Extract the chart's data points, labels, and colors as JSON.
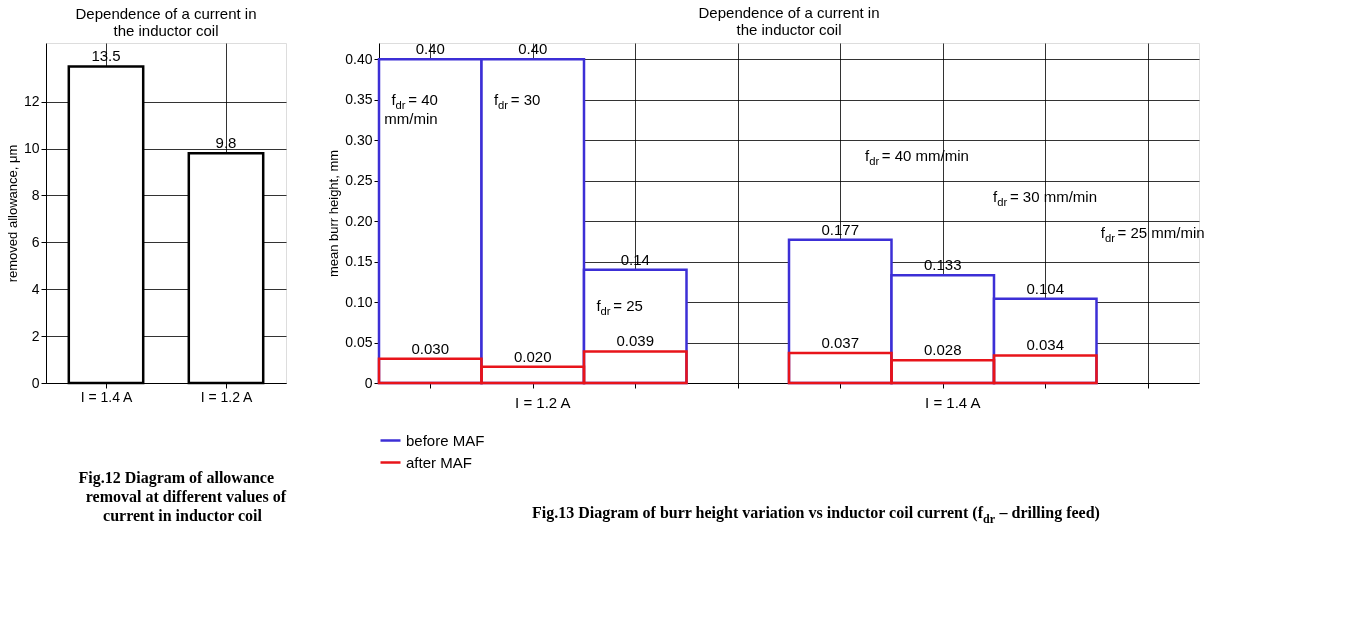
{
  "chart_data": [
    {
      "type": "bar",
      "title": "Dependence of a current in the inductor coil",
      "ylabel": "removed allowance, μm",
      "categories": [
        "I = 1.4 A",
        "I = 1.2 A"
      ],
      "values": [
        13.5,
        9.8
      ],
      "color": "#000000",
      "ylim": [
        0,
        14.5
      ],
      "yticks": [
        0,
        2,
        4,
        6,
        8,
        10,
        12
      ],
      "grid": true,
      "data_labels": true,
      "annotations": [
        "Fig.12 Diagram of allowance removal at different values of current in inductor coil"
      ]
    },
    {
      "type": "bar",
      "title": "Dependence of a current in the inductor coil",
      "ylabel": "mean burr height, mm",
      "categories": [
        null,
        null,
        null,
        null,
        null,
        null,
        null,
        null
      ],
      "series": [
        {
          "name": "before MAF",
          "color": "#3c2fd6",
          "values": [
            0.4,
            0.4,
            0.14,
            null,
            0.177,
            0.133,
            0.104,
            null
          ],
          "value_labels": [
            "0.40",
            "0.40",
            "0.14",
            null,
            "0.177",
            "0.133",
            "0.104",
            null
          ]
        },
        {
          "name": "after MAF",
          "color": "#e8141a",
          "values": [
            0.03,
            0.02,
            0.039,
            null,
            0.037,
            0.028,
            0.034,
            null
          ],
          "value_labels": [
            "0.030",
            "0.020",
            "0.039",
            null,
            "0.037",
            "0.028",
            "0.034",
            null
          ]
        }
      ],
      "ylim": [
        0,
        0.42
      ],
      "yticks": [
        0,
        0.05,
        {
          "value": 0.1,
          "label": "0.10"
        },
        0.15,
        {
          "value": 0.2,
          "label": "0.20"
        },
        0.25,
        {
          "value": 0.3,
          "label": "0.30"
        },
        0.35,
        {
          "value": 0.4,
          "label": "0.40"
        }
      ],
      "grid": true,
      "legend": "bottom",
      "tick_labels": "y",
      "annotations": [
        "f$_{dr}$= 40 mm/min",
        "f$_{dr}$= 30",
        "f$_{dr}$= 25",
        "f$_{dr}$= 40 mm/min",
        "f$_{dr}$= 30 mm/min",
        "f$_{dr}$= 25 mm/min",
        "I = 1.2 A",
        "I = 1.4 A",
        "Fig.13 Diagram of burr height variation vs inductor coil current (f$_{dr}$ – drilling feed)"
      ]
    }
  ]
}
